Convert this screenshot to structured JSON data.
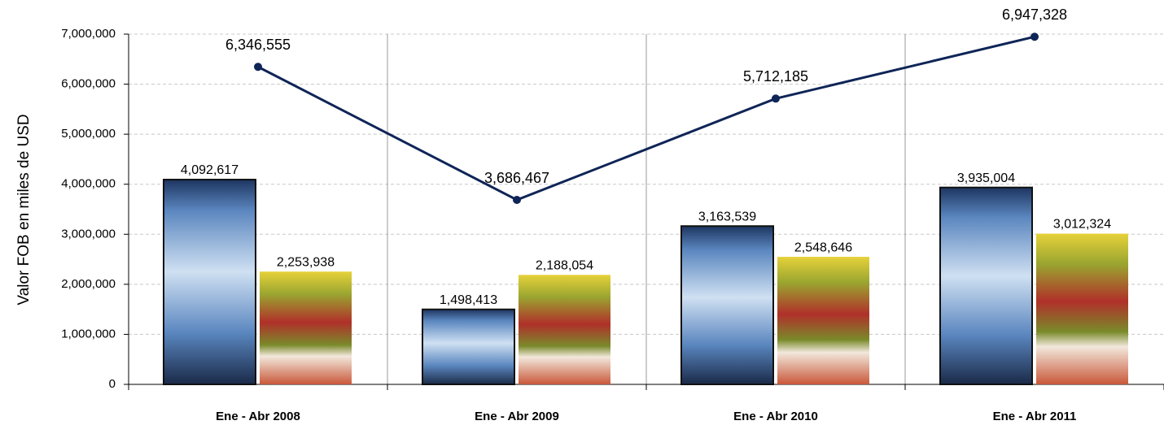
{
  "chart_data": {
    "type": "combo",
    "y_label": "Valor FOB  en miles de USD",
    "categories": [
      "Ene - Abr 2008",
      "Ene - Abr 2009",
      "Ene - Abr 2010",
      "Ene - Abr 2011"
    ],
    "series": [
      {
        "type": "bar",
        "color": "#5a86bf",
        "values": [
          4092617,
          1498413,
          3163539,
          3935004
        ],
        "value_labels": [
          "4,092,617",
          "1,498,413",
          "3,163,539",
          "3,935,004"
        ]
      },
      {
        "type": "bar",
        "color": "#9aa630",
        "values": [
          2253938,
          2188054,
          2548646,
          3012324
        ],
        "value_labels": [
          "2,253,938",
          "2,188,054",
          "2,548,646",
          "3,012,324"
        ]
      },
      {
        "type": "line",
        "color": "#0f2557",
        "values": [
          6346555,
          3686467,
          5712185,
          6947328
        ],
        "value_labels": [
          "6,346,555",
          "3,686,467",
          "5,712,185",
          "6,947,328"
        ]
      }
    ],
    "ylim": [
      0,
      7000000
    ],
    "yticks": [
      0,
      {
        "value": 1000000,
        "label": "1,000,000"
      },
      {
        "value": 2000000,
        "label": "2,000,000"
      },
      {
        "value": 3000000,
        "label": "3,000,000"
      },
      {
        "value": 4000000,
        "label": "4,000,000"
      },
      {
        "value": 5000000,
        "label": "5,000,000"
      },
      {
        "value": 6000000,
        "label": "6,000,000"
      },
      {
        "value": 7000000,
        "label": "7,000,000"
      }
    ],
    "grid": true
  }
}
